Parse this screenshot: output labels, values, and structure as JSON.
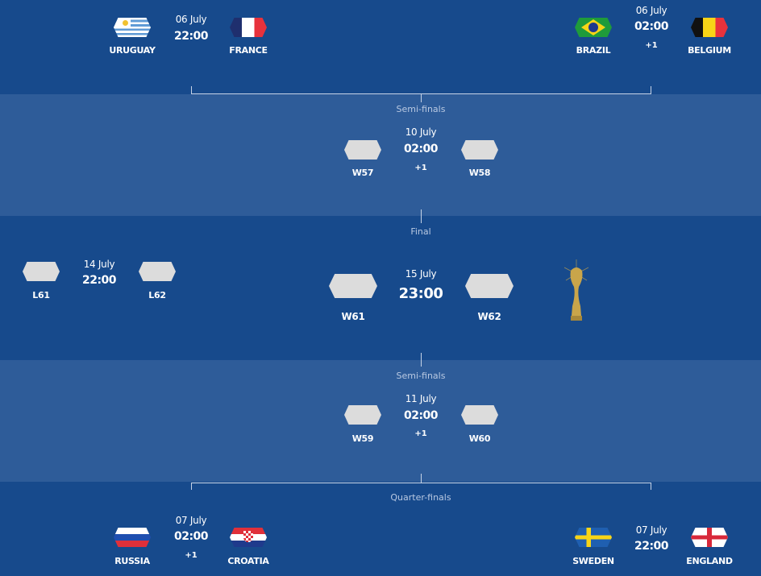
{
  "quarter_top": [
    {
      "date": "06 July",
      "time": "22:00",
      "plus": "",
      "home": "URUGUAY",
      "away": "FRANCE"
    },
    {
      "date": "06 July",
      "time": "02:00",
      "plus": "+1",
      "home": "BRAZIL",
      "away": "BELGIUM"
    }
  ],
  "semi1": {
    "stage": "Semi-finals",
    "date": "10 July",
    "time": "02:00",
    "plus": "+1",
    "home": "W57",
    "away": "W58"
  },
  "third": {
    "date": "14 July",
    "time": "22:00",
    "home": "L61",
    "away": "L62"
  },
  "final": {
    "stage": "Final",
    "date": "15 July",
    "time": "23:00",
    "home": "W61",
    "away": "W62"
  },
  "semi2": {
    "stage": "Semi-finals",
    "date": "11 July",
    "time": "02:00",
    "plus": "+1",
    "home": "W59",
    "away": "W60"
  },
  "quarter_bottom_stage": "Quarter-finals",
  "quarter_bottom": [
    {
      "date": "07 July",
      "time": "02:00",
      "plus": "+1",
      "home": "RUSSIA",
      "away": "CROATIA"
    },
    {
      "date": "07 July",
      "time": "22:00",
      "plus": "",
      "home": "SWEDEN",
      "away": "ENGLAND"
    }
  ],
  "colors": {
    "band_dark": "#174a8c",
    "band_light": "#2e5c99",
    "placeholder_flag": "#dcdcdc",
    "trophy": "#c9a54a"
  }
}
